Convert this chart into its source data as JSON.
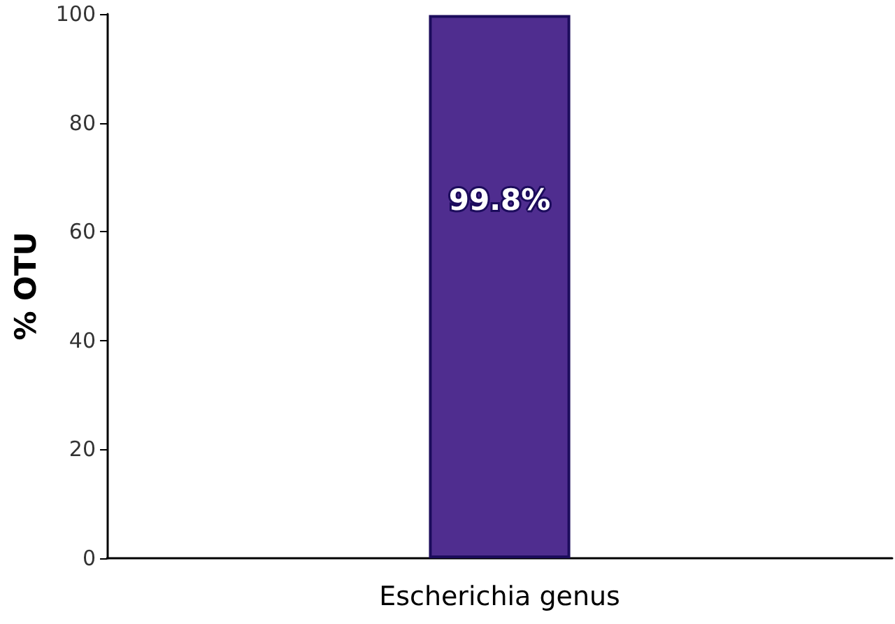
{
  "chart_data": {
    "type": "bar",
    "ylabel": "% OTU",
    "categories": [
      "Escherichia genus"
    ],
    "values": [
      99.8
    ],
    "color": "#4f2d8f",
    "value_labels": [
      "99.8%"
    ],
    "ylim": [
      0,
      100
    ],
    "yticks": [
      0,
      20,
      40,
      60,
      80,
      100
    ],
    "grid": false
  }
}
